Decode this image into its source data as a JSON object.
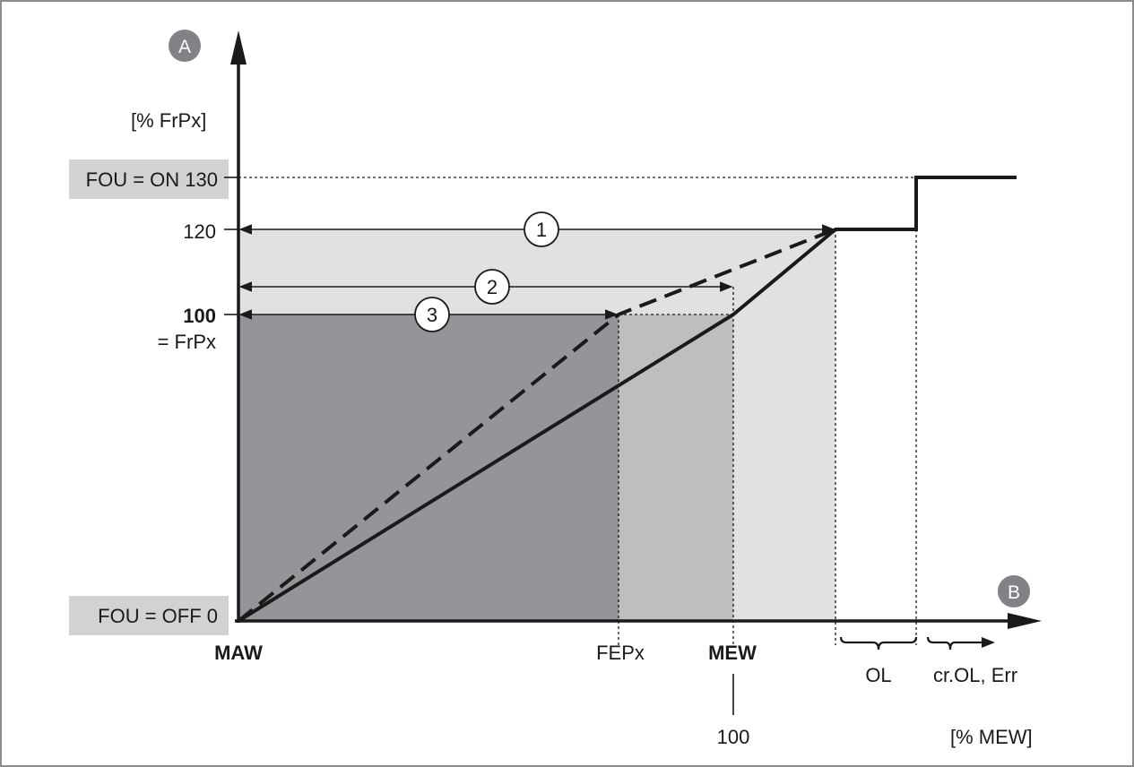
{
  "diagram": {
    "badge_a": "A",
    "badge_b": "B",
    "y_unit": "[% FrPx]",
    "x_unit": "[% MEW]",
    "fou_on_label": "FOU = ON 130",
    "fou_off_label": "FOU = OFF  0",
    "tick_120": "120",
    "tick_100": "100",
    "tick_100_sub": "= FrPx",
    "x_maw": "MAW",
    "x_fepx": "FEPx",
    "x_mew": "MEW",
    "x_mew_100": "100",
    "range_ol": "OL",
    "range_crol": "cr.OL, Err",
    "marker_1": "1",
    "marker_2": "2",
    "marker_3": "3"
  },
  "colors": {
    "zone_dark": "#939598",
    "zone_mid": "#bcbec0",
    "zone_light": "#e0e1e2",
    "label_bg": "#d1d2d4",
    "badge": "#808285",
    "ink": "#1a1a1a",
    "frame": "#8a8c8e"
  }
}
